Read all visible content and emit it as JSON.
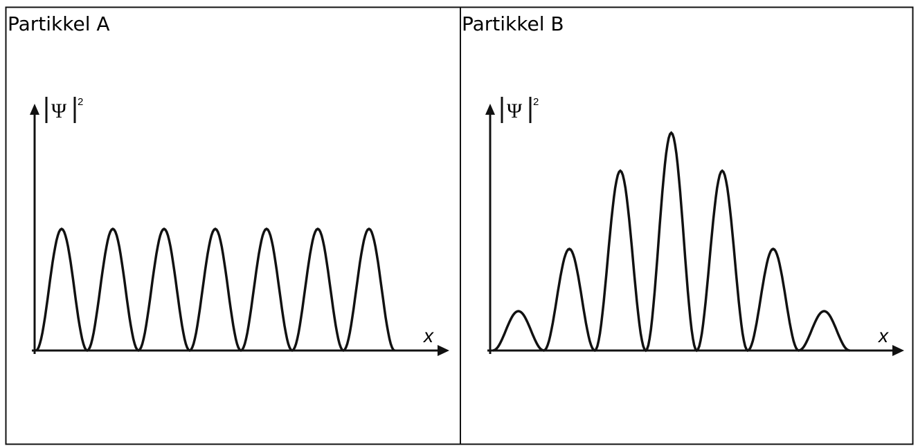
{
  "panels": [
    {
      "title": "Partikkel A",
      "y_label": "Ψ",
      "y_label_exponent": "2",
      "x_label": "x"
    },
    {
      "title": "Partikkel B",
      "y_label": "Ψ",
      "y_label_exponent": "2",
      "x_label": "x"
    }
  ]
}
